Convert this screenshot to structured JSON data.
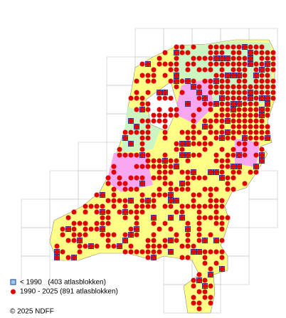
{
  "legend": {
    "items": [
      {
        "label": "< 1990   (403 atlasblokken)"
      },
      {
        "label": "1990 - 2025 (891 atlasblokken)"
      }
    ]
  },
  "footer": {
    "copyright": "© 2025 NDFF"
  }
}
